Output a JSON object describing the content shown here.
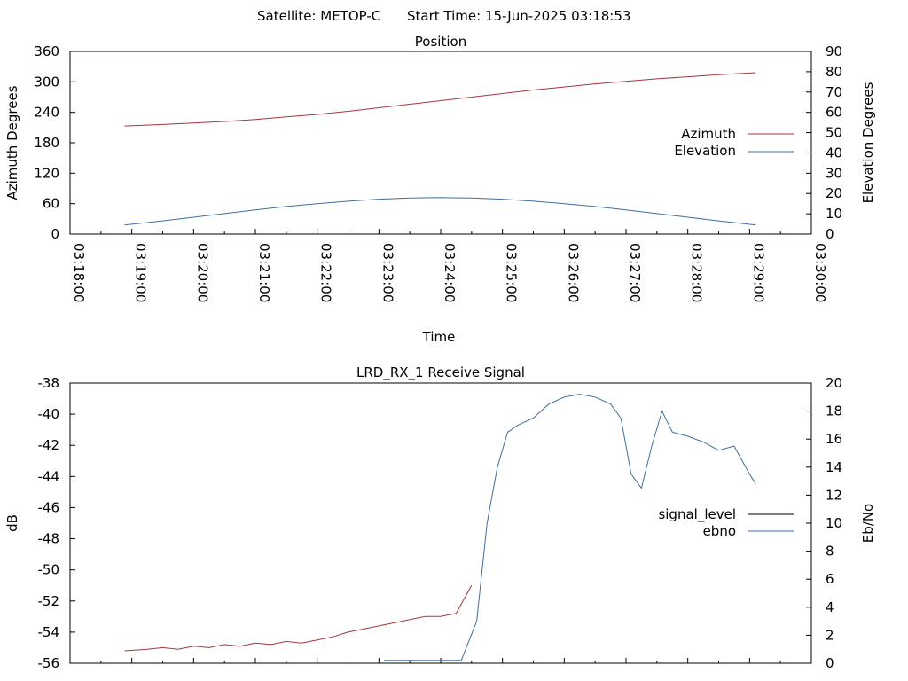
{
  "header": {
    "satellite": "Satellite: METOP-C",
    "start_time": "Start Time: 15-Jun-2025 03:18:53"
  },
  "colors": {
    "azimuth": "#a5373a",
    "elevation": "#3c6ea3",
    "signal_level": "#a5373a",
    "ebno_blue": "#3c6ea3",
    "ebno_green": "#1aa51a",
    "legend_signal_level": "#000000"
  },
  "chart_data": [
    {
      "type": "line",
      "title": "Position",
      "xlabel": "Time",
      "ylabel": "Azimuth Degrees",
      "y2label": "Elevation Degrees",
      "xlim": [
        "03:18:00",
        "03:30:00"
      ],
      "ylim": [
        0,
        360
      ],
      "y2lim": [
        0,
        90
      ],
      "x_ticks": [
        "03:18:00",
        "03:19:00",
        "03:20:00",
        "03:21:00",
        "03:22:00",
        "03:23:00",
        "03:24:00",
        "03:25:00",
        "03:26:00",
        "03:27:00",
        "03:28:00",
        "03:29:00",
        "03:30:00"
      ],
      "y_ticks": [
        "0",
        "60",
        "120",
        "180",
        "240",
        "300",
        "360"
      ],
      "y2_ticks": [
        "0",
        "10",
        "20",
        "30",
        "40",
        "50",
        "60",
        "70",
        "80",
        "90"
      ],
      "legend_position": "right",
      "series": [
        {
          "name": "Azimuth",
          "axis": "left",
          "x": [
            "03:18:53",
            "03:19:30",
            "03:20:00",
            "03:20:30",
            "03:21:00",
            "03:21:30",
            "03:22:00",
            "03:22:30",
            "03:23:00",
            "03:23:30",
            "03:24:00",
            "03:24:30",
            "03:25:00",
            "03:25:30",
            "03:26:00",
            "03:26:30",
            "03:27:00",
            "03:27:30",
            "03:28:00",
            "03:28:30",
            "03:29:06"
          ],
          "values": [
            213,
            216,
            219,
            222,
            226,
            231,
            236,
            242,
            249,
            256,
            263,
            270,
            277,
            284,
            290,
            296,
            301,
            306,
            310,
            314,
            318
          ]
        },
        {
          "name": "Elevation",
          "axis": "right",
          "x": [
            "03:18:53",
            "03:19:30",
            "03:20:00",
            "03:20:30",
            "03:21:00",
            "03:21:30",
            "03:22:00",
            "03:22:30",
            "03:23:00",
            "03:23:30",
            "03:24:00",
            "03:24:30",
            "03:25:00",
            "03:25:30",
            "03:26:00",
            "03:26:30",
            "03:27:00",
            "03:27:30",
            "03:28:00",
            "03:28:30",
            "03:29:06"
          ],
          "values": [
            4.5,
            6.5,
            8.3,
            10.1,
            11.9,
            13.6,
            15.0,
            16.2,
            17.2,
            17.8,
            18.0,
            17.8,
            17.2,
            16.2,
            15.0,
            13.6,
            11.9,
            10.1,
            8.3,
            6.5,
            4.5
          ]
        }
      ]
    },
    {
      "type": "line",
      "title": "LRD_RX_1 Receive Signal",
      "ylabel": "dB",
      "y2label": "Eb/No",
      "ylim": [
        -56,
        -38
      ],
      "y2lim": [
        0,
        20
      ],
      "xlim": [
        "03:18:00",
        "03:30:00"
      ],
      "y_ticks": [
        "-56",
        "-54",
        "-52",
        "-50",
        "-48",
        "-46",
        "-44",
        "-42",
        "-40",
        "-38"
      ],
      "y2_ticks": [
        "0",
        "2",
        "4",
        "6",
        "8",
        "10",
        "12",
        "14",
        "16",
        "18",
        "20"
      ],
      "legend_position": "right",
      "series": [
        {
          "name": "signal_level",
          "axis": "left",
          "x": [
            "03:18:53",
            "03:19:15",
            "03:19:30",
            "03:19:45",
            "03:20:00",
            "03:20:15",
            "03:20:30",
            "03:20:45",
            "03:21:00",
            "03:21:15",
            "03:21:30",
            "03:21:45",
            "03:22:00",
            "03:22:15",
            "03:22:30",
            "03:22:45",
            "03:23:00",
            "03:23:15",
            "03:23:30",
            "03:23:45",
            "03:24:00",
            "03:24:15",
            "03:24:30"
          ],
          "values": [
            -55.2,
            -55.1,
            -55.0,
            -55.1,
            -54.9,
            -55.0,
            -54.8,
            -54.9,
            -54.7,
            -54.8,
            -54.6,
            -54.7,
            -54.5,
            -54.3,
            -54.0,
            -53.8,
            -53.6,
            -53.4,
            -53.2,
            -53.0,
            -53.0,
            -52.8,
            -51.0
          ]
        },
        {
          "name": "ebno",
          "axis": "right",
          "x": [
            "03:23:05",
            "03:24:20",
            "03:24:35",
            "03:24:45",
            "03:24:55",
            "03:25:05",
            "03:25:15",
            "03:25:30",
            "03:25:45",
            "03:26:00",
            "03:26:15",
            "03:26:30",
            "03:26:45",
            "03:26:55",
            "03:27:05",
            "03:27:15",
            "03:27:25",
            "03:27:35",
            "03:27:45",
            "03:28:00",
            "03:28:15",
            "03:28:30",
            "03:28:45",
            "03:29:00",
            "03:29:06"
          ],
          "values": [
            0.2,
            0.2,
            3.0,
            10.0,
            14.0,
            16.5,
            17.0,
            17.5,
            18.5,
            19.0,
            19.2,
            19.0,
            18.5,
            17.5,
            13.5,
            12.5,
            15.5,
            18.0,
            16.5,
            16.2,
            15.8,
            15.2,
            15.5,
            13.5,
            12.8
          ]
        }
      ]
    }
  ],
  "legend": {
    "azimuth": "Azimuth",
    "elevation": "Elevation",
    "signal_level": "signal_level",
    "ebno": "ebno"
  }
}
